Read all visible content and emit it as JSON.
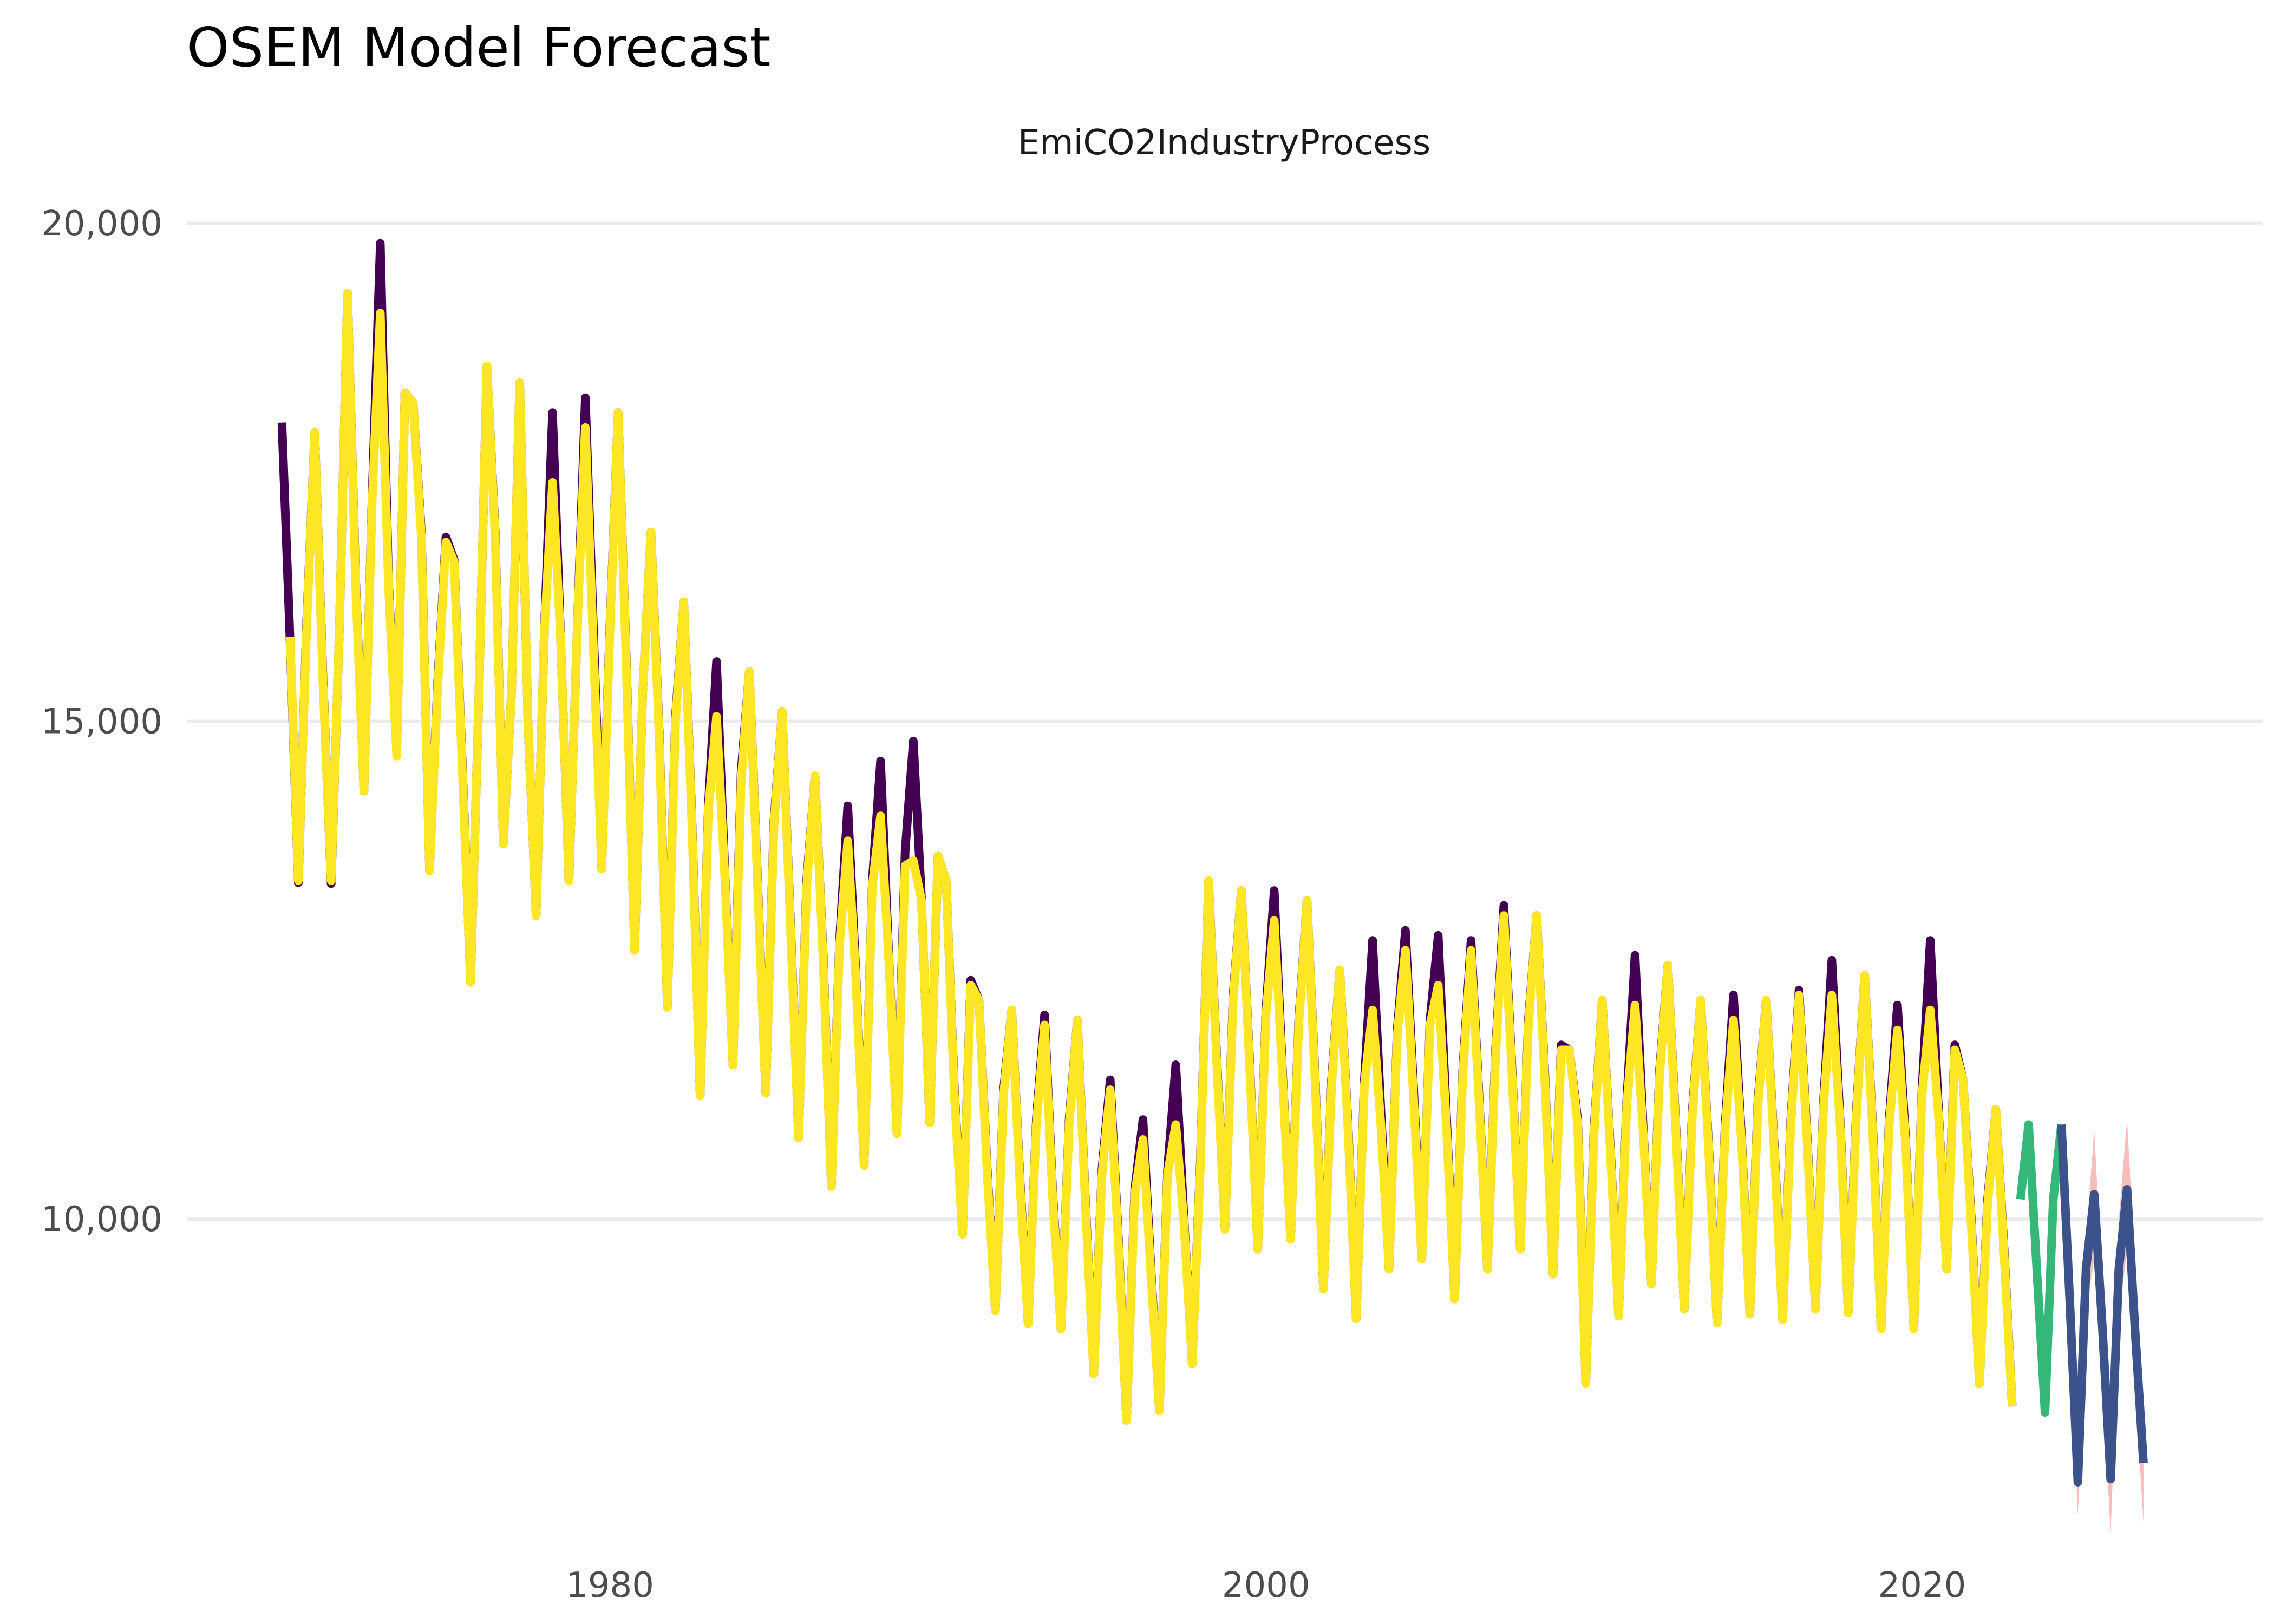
{
  "chart_data": {
    "type": "line",
    "title": "OSEM Model Forecast",
    "subtitle": "EmiCO2IndustryProcess",
    "xlabel": "",
    "ylabel": "",
    "grid": "horizontal major lines only",
    "legend": "none",
    "x_ticks": [
      1980,
      2000,
      2020
    ],
    "y_ticks": [
      10000,
      15000,
      20000
    ],
    "y_tick_labels": [
      "10,000",
      "15,000",
      "20,000"
    ],
    "x_tick_labels": [
      "1980",
      "2000",
      "2020"
    ],
    "xlim": [
      1967.1,
      2030.4
    ],
    "ylim": [
      6750,
      20450
    ],
    "x_start": 1970.0,
    "x_step": 0.25,
    "colors": {
      "actual": "#440154",
      "fitted": "#FDE725",
      "holdout": "#35B779",
      "forecast": "#3B528B",
      "interval": "#F4A6A6"
    },
    "series": [
      {
        "key": "actual",
        "values": [
          18000,
          15800,
          13380,
          15950,
          17900,
          15450,
          13370,
          15900,
          19300,
          16400,
          14300,
          17250,
          19800,
          16400,
          14680,
          18300,
          18200,
          16900,
          13500,
          15400,
          16850,
          16620,
          14550,
          12380,
          15200,
          18560,
          16900,
          13770,
          15300,
          18400,
          15000,
          13050,
          15900,
          18100,
          15800,
          13400,
          15900,
          18250,
          15900,
          13520,
          15950,
          18100,
          15600,
          12700,
          15300,
          16900,
          14900,
          12130,
          15050,
          16200,
          14000,
          11240,
          14150,
          15600,
          13500,
          11550,
          14500,
          15500,
          13400,
          11270,
          14000,
          15100,
          13000,
          10820,
          13400,
          14450,
          12650,
          10330,
          12800,
          14150,
          12450,
          10540,
          13400,
          14600,
          12640,
          10860,
          13700,
          14800,
          13200,
          10970,
          13650,
          13400,
          11300,
          9850,
          12400,
          12200,
          10500,
          9080,
          11300,
          12100,
          10400,
          8950,
          11000,
          12050,
          10250,
          8900,
          11000,
          12000,
          10150,
          8450,
          10500,
          11400,
          9800,
          7980,
          10300,
          11000,
          9450,
          8080,
          10500,
          11550,
          10000,
          8550,
          10600,
          13400,
          11600,
          9900,
          12250,
          13300,
          11600,
          9700,
          12100,
          13300,
          11500,
          9800,
          12000,
          13200,
          11400,
          9300,
          11400,
          12500,
          10950,
          9000,
          11400,
          12800,
          11100,
          9500,
          11900,
          12900,
          11300,
          9600,
          12000,
          12850,
          11050,
          9200,
          11500,
          12800,
          11200,
          9500,
          11700,
          13150,
          11500,
          9700,
          12000,
          13050,
          11450,
          9450,
          11750,
          11700,
          11000,
          8350,
          10900,
          12200,
          10700,
          9030,
          11200,
          12650,
          10900,
          9350,
          11500,
          12550,
          10900,
          9100,
          11100,
          12200,
          10700,
          8960,
          10950,
          12250,
          10800,
          9050,
          11200,
          12200,
          10700,
          8990,
          11000,
          12300,
          10800,
          9100,
          11200,
          12600,
          11000,
          9060,
          11100,
          12450,
          10900,
          8900,
          11000,
          12150,
          10800,
          8900,
          11300,
          12800,
          11100,
          9500,
          11750,
          11400,
          10000,
          8350,
          10200,
          11100,
          9700,
          8120
        ]
      },
      {
        "key": "fitted",
        "values": [
          null,
          15850,
          13400,
          15900,
          17900,
          15400,
          13400,
          15900,
          19300,
          16350,
          14300,
          17200,
          19100,
          16350,
          14650,
          18300,
          18200,
          16850,
          13500,
          15350,
          16800,
          16600,
          14500,
          12380,
          15200,
          18570,
          16850,
          13770,
          15300,
          18400,
          15000,
          13050,
          15900,
          17400,
          15800,
          13400,
          15900,
          17950,
          15700,
          13520,
          15900,
          18100,
          15550,
          12700,
          15300,
          16900,
          14850,
          12130,
          15000,
          16200,
          13950,
          11240,
          14100,
          15050,
          13450,
          11550,
          14400,
          15500,
          13350,
          11270,
          13950,
          15100,
          12950,
          10820,
          13350,
          14450,
          12600,
          10330,
          12750,
          13800,
          12400,
          10540,
          13350,
          14050,
          12600,
          10860,
          13550,
          13600,
          13200,
          10970,
          13650,
          13400,
          11250,
          9850,
          12350,
          12200,
          10450,
          9080,
          11250,
          12100,
          10350,
          8950,
          10950,
          11950,
          10200,
          8900,
          10950,
          12000,
          10100,
          8450,
          10450,
          11300,
          9750,
          7980,
          10250,
          10800,
          9400,
          8080,
          10450,
          10950,
          9950,
          8550,
          10550,
          13400,
          11550,
          9900,
          12200,
          13300,
          11550,
          9700,
          12050,
          13000,
          11450,
          9800,
          11950,
          13200,
          11350,
          9300,
          11350,
          12500,
          10900,
          9000,
          11350,
          12100,
          10950,
          9500,
          11850,
          12700,
          11200,
          9600,
          11950,
          12350,
          10950,
          9200,
          11450,
          12700,
          11150,
          9500,
          11650,
          13050,
          11450,
          9700,
          11950,
          13050,
          11400,
          9450,
          11700,
          11700,
          10950,
          8350,
          10850,
          12200,
          10650,
          9030,
          11150,
          12150,
          10850,
          9350,
          11450,
          12550,
          10850,
          9100,
          11050,
          12200,
          10650,
          8960,
          10900,
          12000,
          10750,
          9050,
          11150,
          12200,
          10650,
          8990,
          10950,
          12250,
          10750,
          9100,
          11150,
          12250,
          10950,
          9060,
          11050,
          12450,
          10850,
          8900,
          10950,
          11900,
          10750,
          8900,
          11250,
          12100,
          11050,
          9500,
          11700,
          11400,
          9950,
          8350,
          10150,
          11100,
          9650,
          8120
        ]
      },
      {
        "key": "holdout",
        "values": [
          10200,
          10950,
          9480,
          8060,
          10200,
          10950
        ]
      },
      {
        "key": "forecast",
        "values": [
          10950,
          9200,
          7360,
          9500,
          10250,
          8900,
          7390,
          9500,
          10300,
          8850,
          7550
        ]
      },
      {
        "key": "interval_upper",
        "values": [
          10950,
          9400,
          7500,
          9800,
          10900,
          9300,
          7550,
          10000,
          11000,
          9500,
          7700
        ]
      },
      {
        "key": "interval_lower",
        "values": [
          10950,
          8950,
          7020,
          9100,
          9600,
          8350,
          6850,
          9000,
          9700,
          8300,
          6950
        ]
      }
    ]
  }
}
